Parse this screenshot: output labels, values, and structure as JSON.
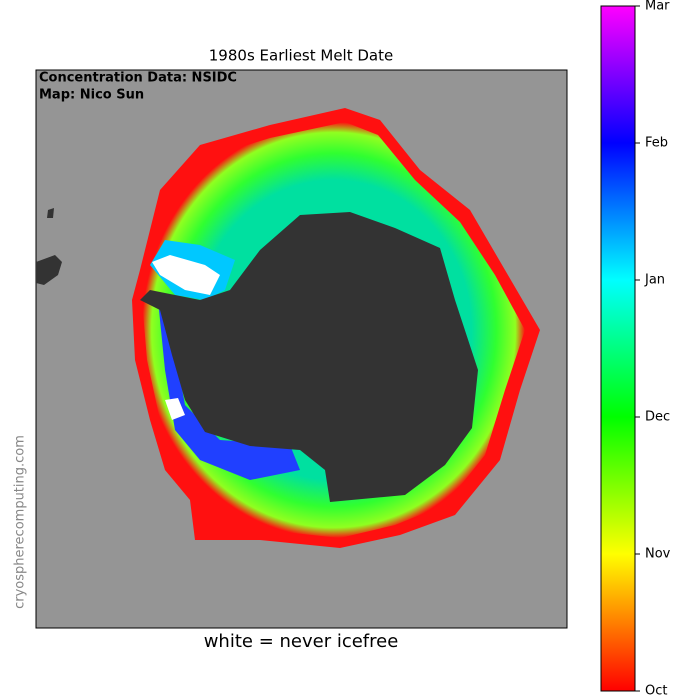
{
  "title": "1980s Earliest Melt Date",
  "credits": [
    "Concentration Data: NSIDC",
    "Map: Nico Sun"
  ],
  "watermark": "cryospherecomputing.com",
  "caption": "white = never icefree",
  "colorbar": {
    "ticks": [
      "Oct",
      "Nov",
      "Dec",
      "Jan",
      "Feb",
      "Mar"
    ]
  }
}
